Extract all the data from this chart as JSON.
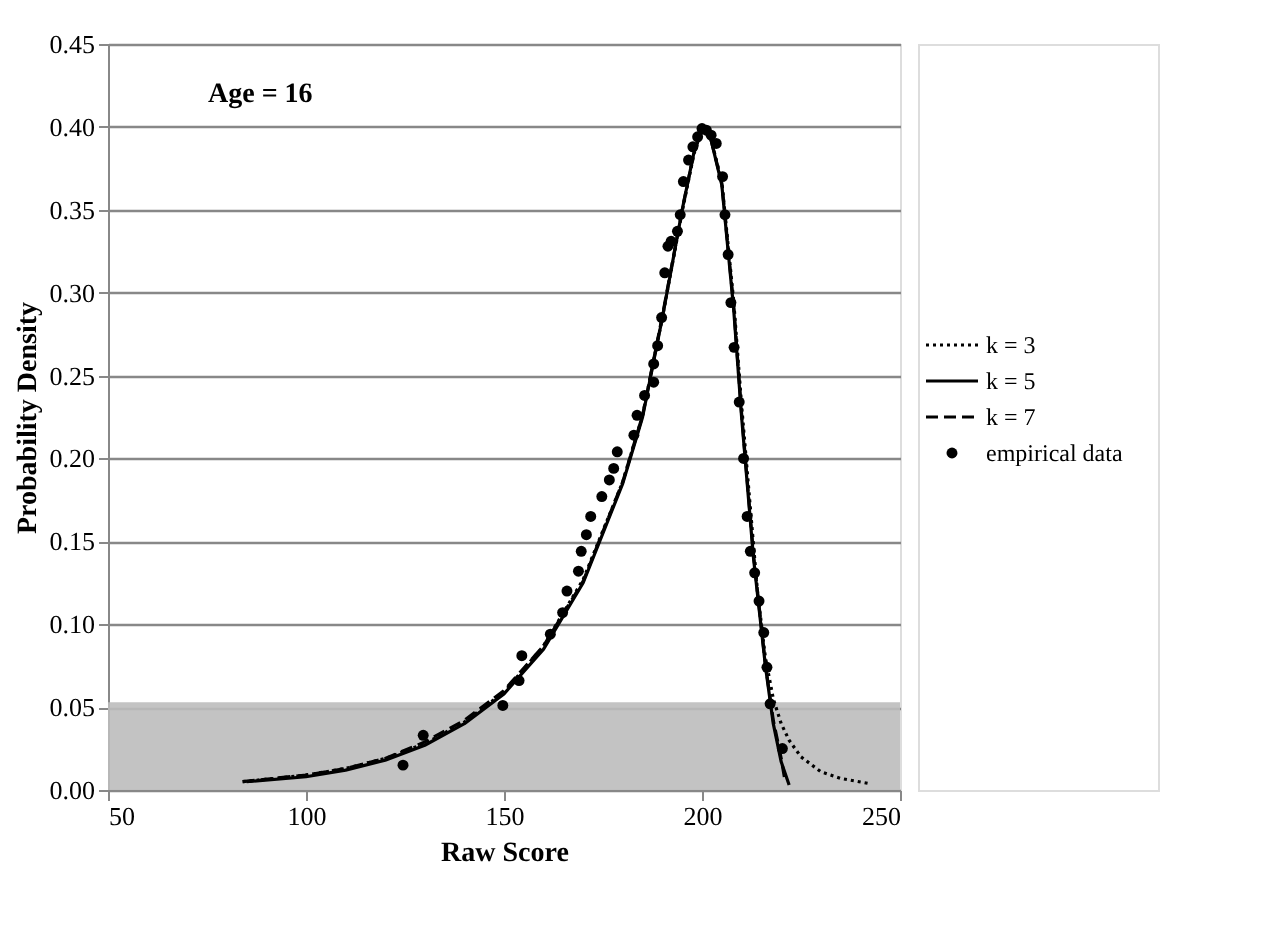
{
  "chart_data": {
    "type": "line",
    "xlabel": "Raw Score",
    "ylabel": "Probability Density",
    "annotations": [
      "Age = 16"
    ],
    "xlim": [
      50,
      250
    ],
    "xticks": [
      50,
      100,
      150,
      200,
      250
    ],
    "ylim": [
      0,
      0.45
    ],
    "yticks": [
      {
        "value": 0,
        "label": "0.00"
      },
      0.05,
      {
        "value": 0.1,
        "label": "0.10"
      },
      0.15,
      {
        "value": 0.2,
        "label": "0.20"
      },
      0.25,
      {
        "value": 0.3,
        "label": "0.30"
      },
      0.35,
      {
        "value": 0.4,
        "label": "0.40"
      },
      0.45
    ],
    "grid": "y",
    "legend": "right",
    "bands": [
      {
        "axis": "y",
        "from": 0,
        "to": 0.053,
        "color": "#bdbdbd"
      }
    ],
    "series": [
      {
        "name": "k = 3",
        "line_style": "dotted",
        "color": "#000000",
        "x": [
          84,
          100,
          110,
          120,
          130,
          140,
          150,
          160,
          170,
          180,
          185,
          190,
          195,
          198,
          200,
          202,
          205,
          208,
          210,
          213,
          214,
          216,
          218,
          220,
          222,
          225,
          230,
          235,
          242
        ],
        "values": [
          0.005,
          0.009,
          0.013,
          0.019,
          0.028,
          0.041,
          0.059,
          0.087,
          0.127,
          0.186,
          0.226,
          0.285,
          0.349,
          0.384,
          0.397,
          0.395,
          0.367,
          0.295,
          0.232,
          0.148,
          0.12,
          0.08,
          0.055,
          0.04,
          0.03,
          0.02,
          0.011,
          0.007,
          0.004
        ]
      },
      {
        "name": "k = 5",
        "line_style": "solid",
        "color": "#000000",
        "x": [
          85,
          100,
          110,
          120,
          130,
          140,
          150,
          160,
          170,
          180,
          185,
          190,
          195,
          198,
          200,
          202,
          205,
          208,
          210,
          213,
          216,
          218,
          220,
          222
        ],
        "values": [
          0.005,
          0.008,
          0.012,
          0.018,
          0.027,
          0.04,
          0.058,
          0.085,
          0.125,
          0.185,
          0.225,
          0.285,
          0.35,
          0.385,
          0.398,
          0.395,
          0.365,
          0.29,
          0.225,
          0.14,
          0.075,
          0.04,
          0.017,
          0.003
        ]
      },
      {
        "name": "k = 7",
        "line_style": "dashed",
        "color": "#000000",
        "x": [
          84,
          100,
          110,
          120,
          130,
          140,
          150,
          160,
          170,
          180,
          185,
          190,
          195,
          198,
          200,
          202,
          205,
          208,
          210,
          213,
          216,
          218,
          220,
          221
        ],
        "values": [
          0.005,
          0.009,
          0.013,
          0.019,
          0.029,
          0.042,
          0.06,
          0.087,
          0.126,
          0.186,
          0.226,
          0.286,
          0.35,
          0.385,
          0.398,
          0.395,
          0.366,
          0.292,
          0.227,
          0.142,
          0.076,
          0.042,
          0.019,
          0.005
        ]
      },
      {
        "name": "empirical data",
        "type": "scatter",
        "marker": "circle",
        "color": "#000000",
        "x": [
          124.5,
          129.6,
          149.7,
          153.8,
          154.5,
          161.7,
          164.8,
          165.9,
          168.8,
          169.5,
          170.8,
          171.9,
          174.7,
          176.6,
          177.7,
          178.6,
          182.8,
          183.6,
          185.5,
          187.8,
          187.8,
          188.8,
          189.8,
          190.6,
          191.4,
          192.2,
          193.8,
          194.5,
          195.3,
          196.6,
          197.7,
          198.9,
          200.0,
          201.1,
          202.3,
          203.6,
          205.2,
          205.8,
          206.6,
          207.3,
          208.1,
          209.4,
          210.5,
          211.4,
          212.2,
          213.3,
          214.4,
          215.6,
          216.4,
          217.2,
          220.3
        ],
        "values": [
          0.015,
          0.033,
          0.051,
          0.066,
          0.081,
          0.094,
          0.107,
          0.12,
          0.132,
          0.144,
          0.154,
          0.165,
          0.177,
          0.187,
          0.194,
          0.204,
          0.214,
          0.226,
          0.238,
          0.246,
          0.257,
          0.268,
          0.285,
          0.312,
          0.328,
          0.331,
          0.337,
          0.347,
          0.367,
          0.38,
          0.388,
          0.394,
          0.399,
          0.398,
          0.395,
          0.39,
          0.37,
          0.347,
          0.323,
          0.294,
          0.267,
          0.234,
          0.2,
          0.165,
          0.144,
          0.131,
          0.114,
          0.095,
          0.074,
          0.052,
          0.025
        ]
      }
    ]
  }
}
